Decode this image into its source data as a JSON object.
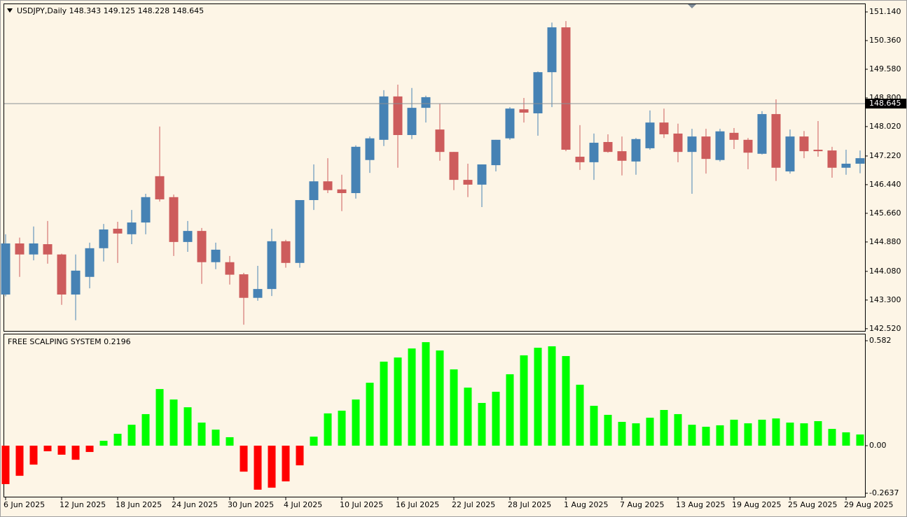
{
  "chart_data": [
    {
      "type": "candlestick",
      "title": "USDJPY,Daily 148.343 149.125 148.228 148.645",
      "categories": [
        "6 Jun 2025",
        null,
        null,
        null,
        "12 Jun 2025",
        null,
        null,
        null,
        "18 Jun 2025",
        null,
        null,
        null,
        "24 Jun 2025",
        null,
        null,
        null,
        "30 Jun 2025",
        null,
        null,
        null,
        "4 Jul 2025",
        null,
        null,
        null,
        "10 Jul 2025",
        null,
        null,
        null,
        "16 Jul 2025",
        null,
        null,
        null,
        "22 Jul 2025",
        null,
        null,
        null,
        "28 Jul 2025",
        null,
        null,
        null,
        "1 Aug 2025",
        null,
        null,
        null,
        "7 Aug 2025",
        null,
        null,
        null,
        "13 Aug 2025",
        null,
        null,
        null,
        "19 Aug 2025",
        null,
        null,
        null,
        "25 Aug 2025",
        null,
        null,
        null,
        "29 Aug 2025",
        null
      ],
      "open": [
        143.45,
        144.84,
        144.54,
        144.82,
        144.54,
        143.45,
        143.93,
        144.71,
        145.24,
        145.09,
        145.41,
        146.67,
        146.1,
        144.88,
        145.18,
        144.33,
        144.33,
        144.0,
        143.36,
        143.6,
        144.9,
        144.31,
        146.02,
        146.53,
        146.31,
        146.21,
        147.11,
        147.66,
        148.84,
        147.79,
        148.53,
        147.94,
        147.33,
        146.57,
        146.44,
        146.97,
        147.7,
        148.49,
        148.38,
        149.5,
        150.72,
        147.2,
        147.05,
        147.6,
        147.35,
        147.07,
        147.43,
        148.13,
        147.83,
        147.33,
        147.75,
        147.11,
        147.85,
        147.66,
        147.28,
        148.36,
        146.8,
        147.75,
        147.39,
        147.37,
        146.9,
        147.01
      ],
      "high": [
        145.09,
        145.0,
        145.3,
        145.45,
        144.56,
        144.54,
        144.86,
        145.37,
        145.43,
        145.75,
        146.19,
        148.02,
        146.17,
        145.45,
        145.26,
        144.86,
        144.5,
        144.04,
        144.23,
        145.24,
        144.94,
        146.02,
        146.99,
        147.16,
        146.71,
        147.51,
        147.75,
        149.01,
        149.16,
        149.07,
        148.86,
        148.65,
        147.33,
        147.01,
        146.99,
        147.66,
        148.55,
        148.8,
        149.52,
        150.85,
        150.89,
        148.06,
        147.83,
        147.81,
        147.75,
        147.71,
        148.46,
        148.51,
        148.1,
        147.96,
        147.96,
        147.96,
        147.98,
        147.71,
        148.44,
        148.76,
        147.94,
        147.9,
        148.17,
        147.47,
        147.39,
        147.37
      ],
      "low": [
        143.4,
        143.93,
        144.38,
        144.29,
        143.17,
        142.75,
        143.62,
        144.35,
        144.31,
        144.82,
        145.09,
        145.98,
        144.5,
        144.61,
        143.74,
        144.14,
        143.72,
        142.63,
        143.28,
        143.41,
        144.18,
        144.18,
        145.75,
        146.21,
        145.72,
        146.06,
        146.76,
        147.49,
        146.9,
        147.68,
        148.13,
        147.09,
        146.29,
        146.1,
        145.83,
        146.8,
        147.66,
        148.13,
        147.77,
        148.55,
        147.35,
        146.84,
        146.57,
        147.31,
        146.69,
        146.71,
        147.39,
        147.71,
        147.05,
        146.19,
        146.74,
        147.07,
        147.41,
        146.86,
        147.26,
        146.54,
        146.74,
        147.16,
        147.2,
        146.63,
        146.71,
        146.75
      ],
      "close": [
        144.84,
        144.54,
        144.84,
        144.54,
        143.45,
        144.1,
        144.71,
        145.22,
        145.11,
        145.41,
        146.1,
        146.04,
        144.88,
        145.18,
        144.33,
        144.67,
        143.99,
        143.36,
        143.6,
        144.9,
        144.31,
        146.02,
        146.53,
        146.29,
        146.21,
        147.47,
        147.7,
        148.84,
        147.79,
        148.53,
        148.82,
        147.33,
        146.57,
        146.44,
        146.99,
        147.66,
        148.51,
        148.4,
        149.5,
        150.72,
        147.39,
        147.05,
        147.58,
        147.33,
        147.09,
        147.68,
        148.13,
        147.81,
        147.33,
        147.75,
        147.14,
        147.89,
        147.66,
        147.31,
        148.36,
        146.9,
        147.75,
        147.35,
        147.35,
        146.9,
        147.01,
        147.16
      ],
      "up_color": "#4682B4",
      "down_color": "#CD5C5C",
      "current_price": 148.645,
      "ylim": [
        142.46,
        151.35
      ],
      "yticks": [
        {
          "value": 151.14,
          "label": "151.140"
        },
        {
          "value": 150.36,
          "label": "150.360"
        },
        {
          "value": 149.58,
          "label": "149.580"
        },
        {
          "value": 148.8,
          "label": "148.800"
        },
        {
          "value": 148.02,
          "label": "148.020"
        },
        {
          "value": 147.22,
          "label": "147.220"
        },
        {
          "value": 146.44,
          "label": "146.440"
        },
        {
          "value": 145.66,
          "label": "145.660"
        },
        {
          "value": 144.88,
          "label": "144.880"
        },
        {
          "value": 144.08,
          "label": "144.080"
        },
        {
          "value": 143.3,
          "label": "143.300"
        },
        {
          "value": 142.52,
          "label": "142.520"
        }
      ]
    },
    {
      "type": "bar",
      "title": "FREE SCALPING SYSTEM 0.2196",
      "values": [
        -0.213,
        -0.167,
        -0.105,
        -0.031,
        -0.05,
        -0.078,
        -0.035,
        0.027,
        0.066,
        0.116,
        0.175,
        0.314,
        0.256,
        0.213,
        0.128,
        0.089,
        0.047,
        -0.144,
        -0.244,
        -0.233,
        -0.198,
        -0.109,
        0.05,
        0.179,
        0.194,
        0.256,
        0.349,
        0.466,
        0.489,
        0.539,
        0.574,
        0.528,
        0.423,
        0.322,
        0.237,
        0.299,
        0.396,
        0.501,
        0.543,
        0.551,
        0.497,
        0.338,
        0.221,
        0.171,
        0.132,
        0.124,
        0.155,
        0.198,
        0.175,
        0.116,
        0.105,
        0.113,
        0.144,
        0.124,
        0.144,
        0.151,
        0.128,
        0.124,
        0.136,
        0.093,
        0.074,
        0.062
      ],
      "positive_color": "#00FF00",
      "negative_color": "#FF0000",
      "ylim": [
        -0.283,
        0.617
      ],
      "yticks": [
        0.582,
        {
          "value": 0,
          "label": "0.00"
        },
        -0.2637
      ]
    }
  ]
}
